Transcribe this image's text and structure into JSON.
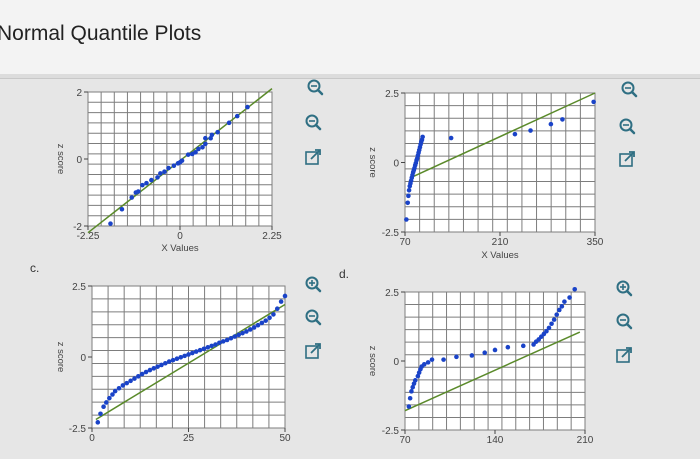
{
  "page": {
    "title": "Normal Quantile Plots"
  },
  "panel_letters": {
    "c": "c.",
    "d": "d."
  },
  "colors": {
    "point": "#1a43c8",
    "line": "#5a8a2a",
    "grid": "#7d7d7d",
    "plot_bg": "#ffffff",
    "icon": "#2f6f83"
  },
  "icons": [
    "zoom-in-icon",
    "zoom-out-icon",
    "external-link-icon"
  ],
  "chart_data": [
    {
      "id": "a",
      "type": "scatter",
      "xlabel": "X Values",
      "ylabel": "z score",
      "xlim": [
        -2.25,
        2.25
      ],
      "ylim": [
        -2,
        2
      ],
      "xticks": [
        {
          "v": -2.25,
          "label": "-2.25"
        },
        {
          "v": 0,
          "label": "0"
        },
        {
          "v": 2.25,
          "label": "2.25"
        }
      ],
      "yticks": [
        {
          "v": 2,
          "label": "2"
        },
        {
          "v": 0,
          "label": "0"
        },
        {
          "v": -2,
          "label": "-2"
        }
      ],
      "fit_line": [
        [
          -2.25,
          -2.2
        ],
        [
          2.25,
          2.1
        ]
      ],
      "points": [
        [
          -1.7,
          -1.93
        ],
        [
          -1.42,
          -1.5
        ],
        [
          -1.18,
          -1.15
        ],
        [
          -1.08,
          -1.0
        ],
        [
          -1.02,
          -0.97
        ],
        [
          -0.92,
          -0.78
        ],
        [
          -0.82,
          -0.72
        ],
        [
          -0.7,
          -0.63
        ],
        [
          -0.55,
          -0.55
        ],
        [
          -0.48,
          -0.43
        ],
        [
          -0.38,
          -0.38
        ],
        [
          -0.28,
          -0.27
        ],
        [
          -0.15,
          -0.2
        ],
        [
          -0.05,
          -0.13
        ],
        [
          0.0,
          -0.1
        ],
        [
          0.05,
          -0.05
        ],
        [
          0.2,
          0.13
        ],
        [
          0.3,
          0.15
        ],
        [
          0.38,
          0.2
        ],
        [
          0.45,
          0.3
        ],
        [
          0.55,
          0.35
        ],
        [
          0.62,
          0.45
        ],
        [
          0.62,
          0.62
        ],
        [
          0.75,
          0.62
        ],
        [
          0.78,
          0.72
        ],
        [
          0.92,
          0.8
        ],
        [
          1.2,
          1.08
        ],
        [
          1.4,
          1.28
        ],
        [
          1.65,
          1.55
        ]
      ]
    },
    {
      "id": "b",
      "type": "scatter",
      "xlabel": "X Values",
      "ylabel": "z score",
      "xlim": [
        70,
        350
      ],
      "ylim": [
        -2.5,
        2.5
      ],
      "xticks": [
        {
          "v": 70,
          "label": "70"
        },
        {
          "v": 210,
          "label": "210"
        },
        {
          "v": 350,
          "label": "350"
        }
      ],
      "yticks": [
        {
          "v": 2.5,
          "label": "2.5"
        },
        {
          "v": 0,
          "label": "0"
        },
        {
          "v": -2.5,
          "label": "-2.5"
        }
      ],
      "fit_line": [
        [
          78,
          -0.55
        ],
        [
          350,
          2.5
        ]
      ],
      "points": [
        [
          72,
          -2.05
        ],
        [
          74,
          -1.45
        ],
        [
          75,
          -1.2
        ],
        [
          76,
          -1.0
        ],
        [
          77,
          -0.85
        ],
        [
          78,
          -0.75
        ],
        [
          79,
          -0.65
        ],
        [
          80,
          -0.55
        ],
        [
          81,
          -0.45
        ],
        [
          82,
          -0.35
        ],
        [
          83,
          -0.28
        ],
        [
          84,
          -0.2
        ],
        [
          85,
          -0.1
        ],
        [
          86,
          -0.02
        ],
        [
          87,
          0.08
        ],
        [
          88,
          0.15
        ],
        [
          89,
          0.25
        ],
        [
          90,
          0.35
        ],
        [
          91,
          0.45
        ],
        [
          92,
          0.55
        ],
        [
          93,
          0.65
        ],
        [
          94,
          0.75
        ],
        [
          95,
          0.82
        ],
        [
          96,
          0.92
        ],
        [
          138,
          0.88
        ],
        [
          232,
          1.02
        ],
        [
          255,
          1.15
        ],
        [
          285,
          1.38
        ],
        [
          302,
          1.55
        ],
        [
          348,
          2.18
        ]
      ]
    },
    {
      "id": "c",
      "type": "scatter",
      "xlabel": "",
      "ylabel": "z score",
      "xlim": [
        0,
        50
      ],
      "ylim": [
        -2.5,
        2.5
      ],
      "xticks": [
        {
          "v": 0,
          "label": "0"
        },
        {
          "v": 25,
          "label": "25"
        },
        {
          "v": 50,
          "label": "50"
        }
      ],
      "yticks": [
        {
          "v": 2.5,
          "label": "2.5"
        },
        {
          "v": 0,
          "label": "0"
        },
        {
          "v": -2.5,
          "label": "-2.5"
        }
      ],
      "fit_line": [
        [
          1,
          -2.2
        ],
        [
          50,
          1.85
        ]
      ],
      "points": [
        [
          1.5,
          -2.3
        ],
        [
          2.2,
          -2.0
        ],
        [
          3,
          -1.75
        ],
        [
          3.7,
          -1.6
        ],
        [
          4.5,
          -1.45
        ],
        [
          5.3,
          -1.32
        ],
        [
          6,
          -1.2
        ],
        [
          7,
          -1.1
        ],
        [
          8,
          -1.0
        ],
        [
          9,
          -0.92
        ],
        [
          10,
          -0.84
        ],
        [
          11,
          -0.76
        ],
        [
          12,
          -0.68
        ],
        [
          13,
          -0.6
        ],
        [
          14,
          -0.53
        ],
        [
          15,
          -0.46
        ],
        [
          16,
          -0.4
        ],
        [
          17,
          -0.34
        ],
        [
          18,
          -0.28
        ],
        [
          19,
          -0.22
        ],
        [
          20,
          -0.16
        ],
        [
          21,
          -0.11
        ],
        [
          22,
          -0.06
        ],
        [
          23,
          -0.01
        ],
        [
          24,
          0.04
        ],
        [
          25,
          0.09
        ],
        [
          26,
          0.14
        ],
        [
          27,
          0.19
        ],
        [
          28,
          0.24
        ],
        [
          29,
          0.29
        ],
        [
          30,
          0.34
        ],
        [
          31,
          0.39
        ],
        [
          32,
          0.44
        ],
        [
          33,
          0.5
        ],
        [
          34,
          0.55
        ],
        [
          35,
          0.6
        ],
        [
          36,
          0.66
        ],
        [
          37,
          0.72
        ],
        [
          38,
          0.78
        ],
        [
          39,
          0.84
        ],
        [
          40,
          0.9
        ],
        [
          41,
          0.97
        ],
        [
          42,
          1.04
        ],
        [
          43,
          1.12
        ],
        [
          44,
          1.2
        ],
        [
          45,
          1.28
        ],
        [
          46,
          1.38
        ],
        [
          47,
          1.5
        ],
        [
          48,
          1.7
        ],
        [
          49,
          1.95
        ],
        [
          50,
          2.15
        ]
      ]
    },
    {
      "id": "d",
      "type": "scatter",
      "xlabel": "",
      "ylabel": "z score",
      "xlim": [
        70,
        210
      ],
      "ylim": [
        -2.5,
        2.5
      ],
      "xticks": [
        {
          "v": 70,
          "label": "70"
        },
        {
          "v": 140,
          "label": "140"
        },
        {
          "v": 210,
          "label": "210"
        }
      ],
      "yticks": [
        {
          "v": 2.5,
          "label": "2.5"
        },
        {
          "v": 0,
          "label": "0"
        },
        {
          "v": -2.5,
          "label": "-2.5"
        }
      ],
      "fit_line": [
        [
          70,
          -1.8
        ],
        [
          206,
          1.05
        ]
      ],
      "points": [
        [
          73,
          -1.65
        ],
        [
          74,
          -1.35
        ],
        [
          75,
          -1.1
        ],
        [
          76,
          -0.95
        ],
        [
          77,
          -0.82
        ],
        [
          78,
          -0.7
        ],
        [
          80,
          -0.55
        ],
        [
          81,
          -0.42
        ],
        [
          82,
          -0.3
        ],
        [
          83,
          -0.2
        ],
        [
          85,
          -0.12
        ],
        [
          88,
          -0.05
        ],
        [
          91,
          0.05
        ],
        [
          100,
          0.05
        ],
        [
          110,
          0.15
        ],
        [
          122,
          0.2
        ],
        [
          132,
          0.3
        ],
        [
          140,
          0.4
        ],
        [
          150,
          0.5
        ],
        [
          162,
          0.55
        ],
        [
          170,
          0.6
        ],
        [
          172,
          0.7
        ],
        [
          174,
          0.78
        ],
        [
          176,
          0.88
        ],
        [
          178,
          0.98
        ],
        [
          180,
          1.08
        ],
        [
          182,
          1.2
        ],
        [
          184,
          1.35
        ],
        [
          186,
          1.5
        ],
        [
          188,
          1.68
        ],
        [
          190,
          1.85
        ],
        [
          192,
          1.98
        ],
        [
          194,
          2.15
        ],
        [
          198,
          2.3
        ],
        [
          202,
          2.6
        ]
      ]
    }
  ]
}
